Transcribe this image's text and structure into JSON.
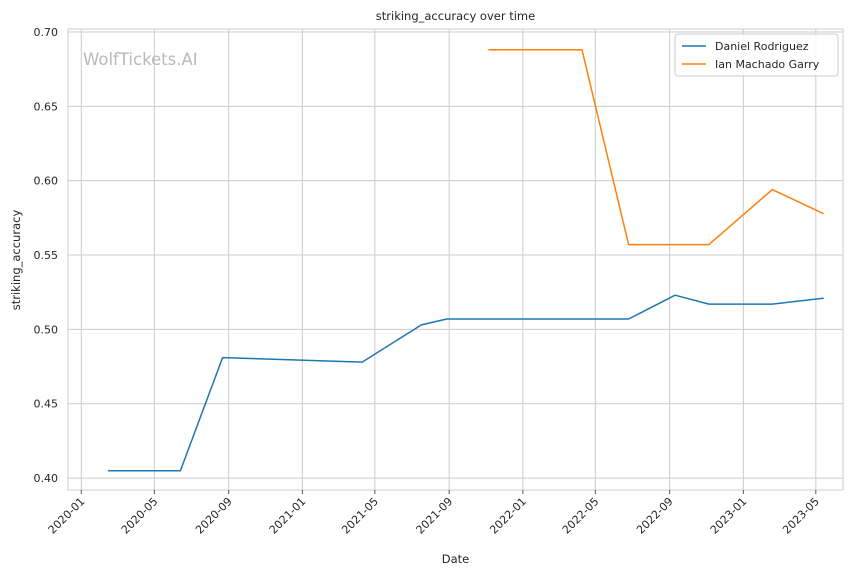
{
  "chart_data": {
    "type": "line",
    "title": "striking_accuracy over time",
    "xlabel": "Date",
    "ylabel": "striking_accuracy",
    "watermark": "WolfTickets.AI",
    "xlim": [
      "2019-12-10",
      "2023-06-15"
    ],
    "ylim": [
      0.392,
      0.702
    ],
    "x_ticks": [
      "2020-01",
      "2020-05",
      "2020-09",
      "2021-01",
      "2021-05",
      "2021-09",
      "2022-01",
      "2022-05",
      "2022-09",
      "2023-01",
      "2023-05"
    ],
    "y_ticks": [
      "0.40",
      "0.45",
      "0.50",
      "0.55",
      "0.60",
      "0.65",
      "0.70"
    ],
    "grid": true,
    "legend_position": "top-right",
    "series": [
      {
        "name": "Daniel Rodriguez",
        "color": "#1f77b4",
        "points": [
          [
            "2020-02-15",
            0.405
          ],
          [
            "2020-06-13",
            0.405
          ],
          [
            "2020-08-22",
            0.481
          ],
          [
            "2021-04-10",
            0.478
          ],
          [
            "2021-07-17",
            0.503
          ],
          [
            "2021-08-28",
            0.507
          ],
          [
            "2022-06-25",
            0.507
          ],
          [
            "2022-09-10",
            0.523
          ],
          [
            "2022-11-05",
            0.517
          ],
          [
            "2023-02-18",
            0.517
          ],
          [
            "2023-05-13",
            0.521
          ]
        ]
      },
      {
        "name": "Ian Machado Garry",
        "color": "#ff7f0e",
        "points": [
          [
            "2021-11-06",
            0.688
          ],
          [
            "2022-04-09",
            0.688
          ],
          [
            "2022-06-25",
            0.557
          ],
          [
            "2022-11-05",
            0.557
          ],
          [
            "2023-02-18",
            0.594
          ],
          [
            "2023-05-13",
            0.578
          ]
        ]
      }
    ]
  }
}
